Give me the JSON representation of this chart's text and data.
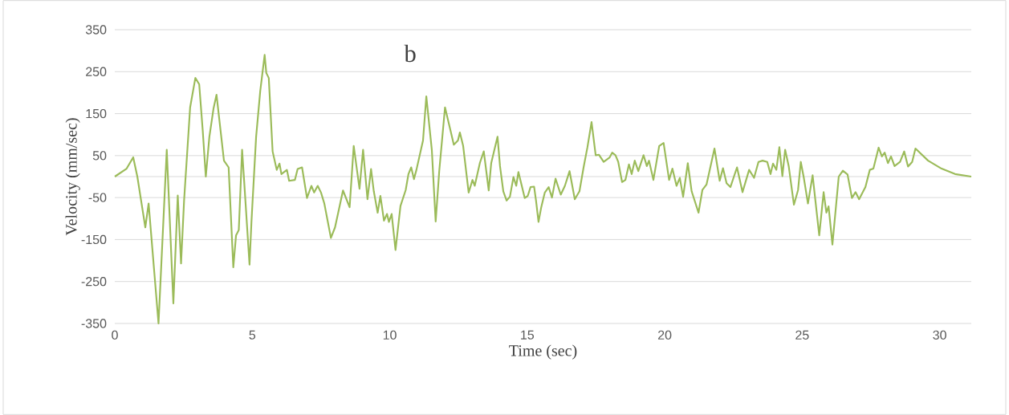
{
  "chart_data": {
    "type": "line",
    "title": "b",
    "xlabel": "Time (sec)",
    "ylabel": "Velocity (mm/sec)",
    "xlim": [
      0,
      31.15
    ],
    "xticks": [
      0,
      5,
      10,
      15,
      20,
      25,
      30
    ],
    "ylim": [
      -350,
      350
    ],
    "yticks": [
      -350,
      -250,
      -150,
      -50,
      50,
      150,
      250,
      350
    ],
    "grid": "y",
    "marker": "none",
    "line_style": "solid",
    "ref_lines": [
      {
        "axis": "y",
        "value": 0,
        "color": "#d9d9d9"
      }
    ],
    "series": [
      {
        "color": "#9bbb59",
        "x": [
          0,
          0.43,
          0.67,
          0.82,
          1.11,
          1.23,
          1.59,
          1.89,
          2.13,
          2.29,
          2.41,
          2.52,
          2.74,
          2.93,
          3.07,
          3.2,
          3.31,
          3.44,
          3.59,
          3.7,
          3.97,
          4.14,
          4.31,
          4.41,
          4.51,
          4.63,
          4.7,
          4.9,
          4.97,
          5.14,
          5.29,
          5.45,
          5.51,
          5.6,
          5.74,
          5.89,
          5.99,
          6.06,
          6.26,
          6.34,
          6.55,
          6.65,
          6.81,
          6.99,
          7.15,
          7.25,
          7.38,
          7.5,
          7.62,
          7.86,
          8.01,
          8.3,
          8.54,
          8.69,
          8.9,
          9.03,
          9.19,
          9.32,
          9.42,
          9.56,
          9.66,
          9.79,
          9.9,
          9.97,
          10.07,
          10.21,
          10.39,
          10.58,
          10.68,
          10.78,
          10.88,
          10.97,
          11.21,
          11.33,
          11.53,
          11.67,
          11.8,
          12.01,
          12.19,
          12.33,
          12.48,
          12.55,
          12.67,
          12.87,
          13.01,
          13.09,
          13.28,
          13.42,
          13.6,
          13.69,
          13.92,
          14.01,
          14.13,
          14.25,
          14.37,
          14.5,
          14.6,
          14.68,
          14.91,
          15.02,
          15.12,
          15.25,
          15.32,
          15.41,
          15.51,
          15.64,
          15.78,
          15.9,
          16.03,
          16.22,
          16.37,
          16.54,
          16.73,
          16.9,
          17.05,
          17.19,
          17.34,
          17.49,
          17.61,
          17.78,
          17.99,
          18.09,
          18.21,
          18.31,
          18.45,
          18.57,
          18.7,
          18.8,
          18.91,
          19.04,
          19.23,
          19.35,
          19.43,
          19.59,
          19.8,
          19.96,
          20.16,
          20.28,
          20.43,
          20.55,
          20.67,
          20.84,
          20.98,
          21.23,
          21.37,
          21.52,
          21.81,
          22.0,
          22.12,
          22.25,
          22.39,
          22.63,
          22.83,
          23.07,
          23.25,
          23.41,
          23.56,
          23.73,
          23.85,
          23.94,
          24.06,
          24.17,
          24.28,
          24.38,
          24.51,
          24.7,
          24.85,
          24.95,
          25.06,
          25.21,
          25.38,
          25.62,
          25.78,
          25.88,
          25.96,
          26.1,
          26.33,
          26.48,
          26.65,
          26.81,
          26.94,
          27.07,
          27.3,
          27.46,
          27.59,
          27.78,
          27.9,
          28.0,
          28.12,
          28.23,
          28.36,
          28.56,
          28.71,
          28.85,
          29.0,
          29.12,
          29.58,
          30.07,
          30.56,
          31.15
        ],
        "values": [
          0,
          19,
          46,
          0,
          -121,
          -64,
          -350,
          64,
          -302,
          -45,
          -207,
          -57,
          165,
          235,
          220,
          108,
          0,
          95,
          162,
          195,
          38,
          22,
          -216,
          -140,
          -127,
          64,
          -6,
          -210,
          -108,
          95,
          204,
          290,
          247,
          235,
          60,
          16,
          31,
          6,
          16,
          -10,
          -8,
          18,
          22,
          -51,
          -22,
          -38,
          -22,
          -38,
          -64,
          -146,
          -121,
          -33,
          -73,
          73,
          -29,
          64,
          -54,
          18,
          -35,
          -86,
          -46,
          -105,
          -89,
          -108,
          -89,
          -175,
          -70,
          -32,
          6,
          22,
          -6,
          16,
          86,
          191,
          64,
          -107,
          13,
          165,
          115,
          76,
          86,
          105,
          73,
          -38,
          -8,
          -22,
          33,
          60,
          -33,
          32,
          95,
          25,
          -35,
          -57,
          -48,
          -1,
          -22,
          11,
          -51,
          -46,
          -25,
          -24,
          -57,
          -108,
          -73,
          -38,
          -25,
          -50,
          -5,
          -43,
          -22,
          13,
          -54,
          -35,
          22,
          70,
          130,
          51,
          52,
          35,
          45,
          57,
          51,
          35,
          -13,
          -8,
          29,
          6,
          38,
          13,
          51,
          25,
          38,
          -8,
          73,
          80,
          -8,
          19,
          -22,
          -3,
          -48,
          32,
          -35,
          -86,
          -32,
          -19,
          67,
          -10,
          20,
          -16,
          -25,
          22,
          -37,
          16,
          -3,
          35,
          38,
          35,
          6,
          31,
          16,
          70,
          1,
          64,
          25,
          -67,
          -32,
          35,
          -3,
          -64,
          3,
          -140,
          -37,
          -86,
          -71,
          -162,
          0,
          14,
          5,
          -51,
          -37,
          -54,
          -25,
          16,
          19,
          69,
          48,
          57,
          32,
          48,
          25,
          35,
          60,
          24,
          35,
          67,
          38,
          19,
          6,
          0
        ]
      }
    ]
  }
}
